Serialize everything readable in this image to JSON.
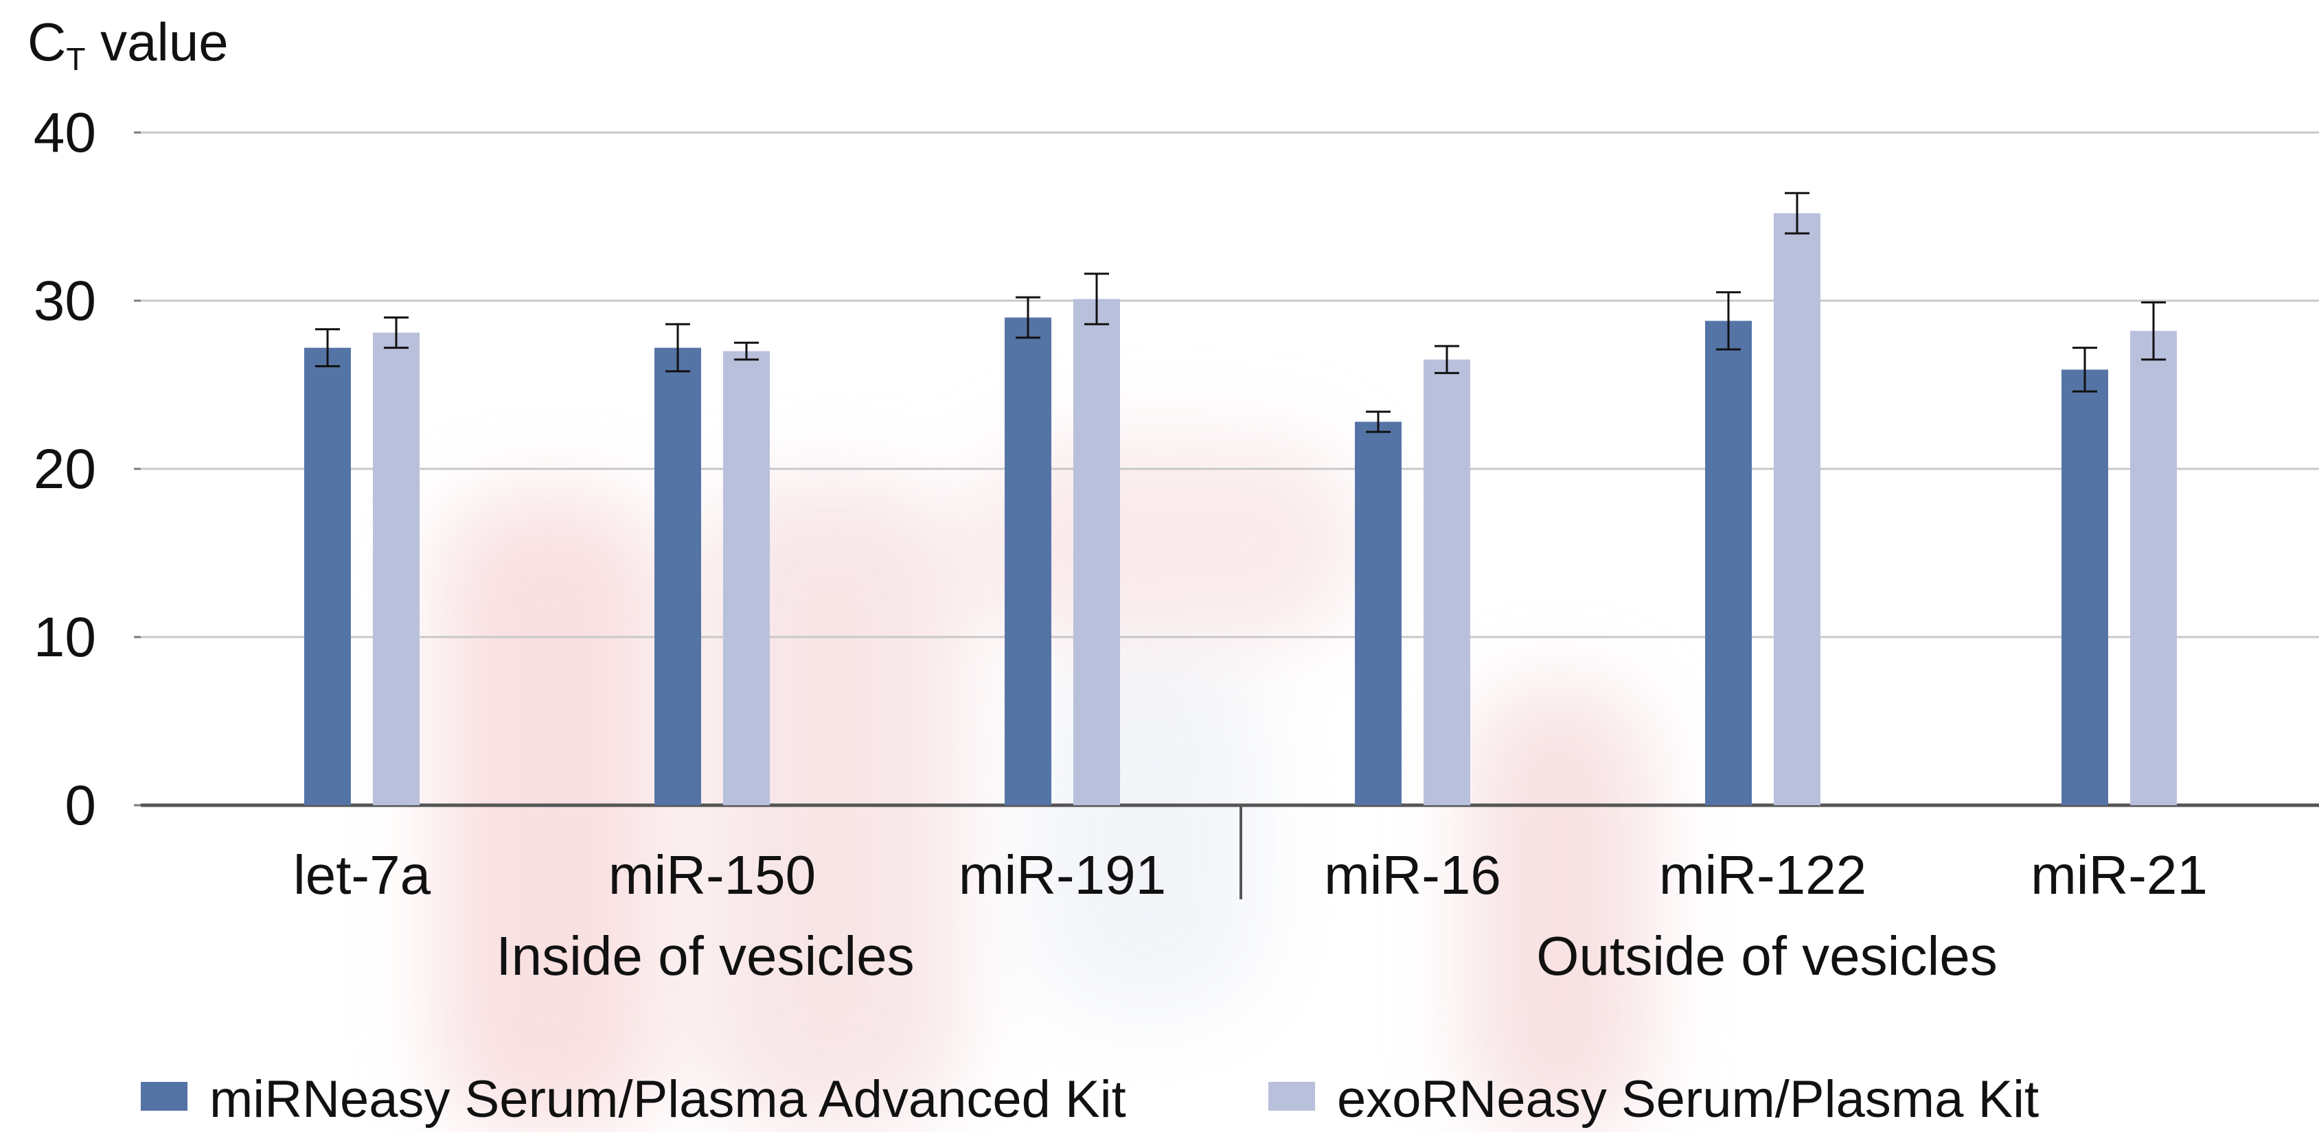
{
  "chart_data": {
    "type": "bar",
    "ylabel": "C",
    "ylabel_subscript": "T",
    "ylabel_suffix": " value",
    "ylim": [
      0,
      40
    ],
    "yticks": [
      0,
      10,
      20,
      30,
      40
    ],
    "grid": true,
    "categories": [
      "let-7a",
      "miR-150",
      "miR-191",
      "miR-16",
      "miR-122",
      "miR-21"
    ],
    "groups": [
      {
        "label": "Inside of vesicles",
        "categories": [
          "let-7a",
          "miR-150",
          "miR-191"
        ]
      },
      {
        "label": "Outside of vesicles",
        "categories": [
          "miR-16",
          "miR-122",
          "miR-21"
        ]
      }
    ],
    "series": [
      {
        "name": "miRNeasy Serum/Plasma Advanced Kit",
        "color": "#5574a6",
        "values": [
          27.2,
          27.2,
          29.0,
          22.8,
          28.8,
          25.9
        ],
        "errors": [
          1.1,
          1.4,
          1.2,
          0.6,
          1.7,
          1.3
        ]
      },
      {
        "name": "exoRNeasy Serum/Plasma Kit",
        "color": "#b8c0dc",
        "values": [
          28.1,
          27.0,
          30.1,
          26.5,
          35.2,
          28.2
        ],
        "errors": [
          0.9,
          0.5,
          1.5,
          0.8,
          1.2,
          1.7
        ]
      }
    ],
    "legend_position": "bottom"
  }
}
